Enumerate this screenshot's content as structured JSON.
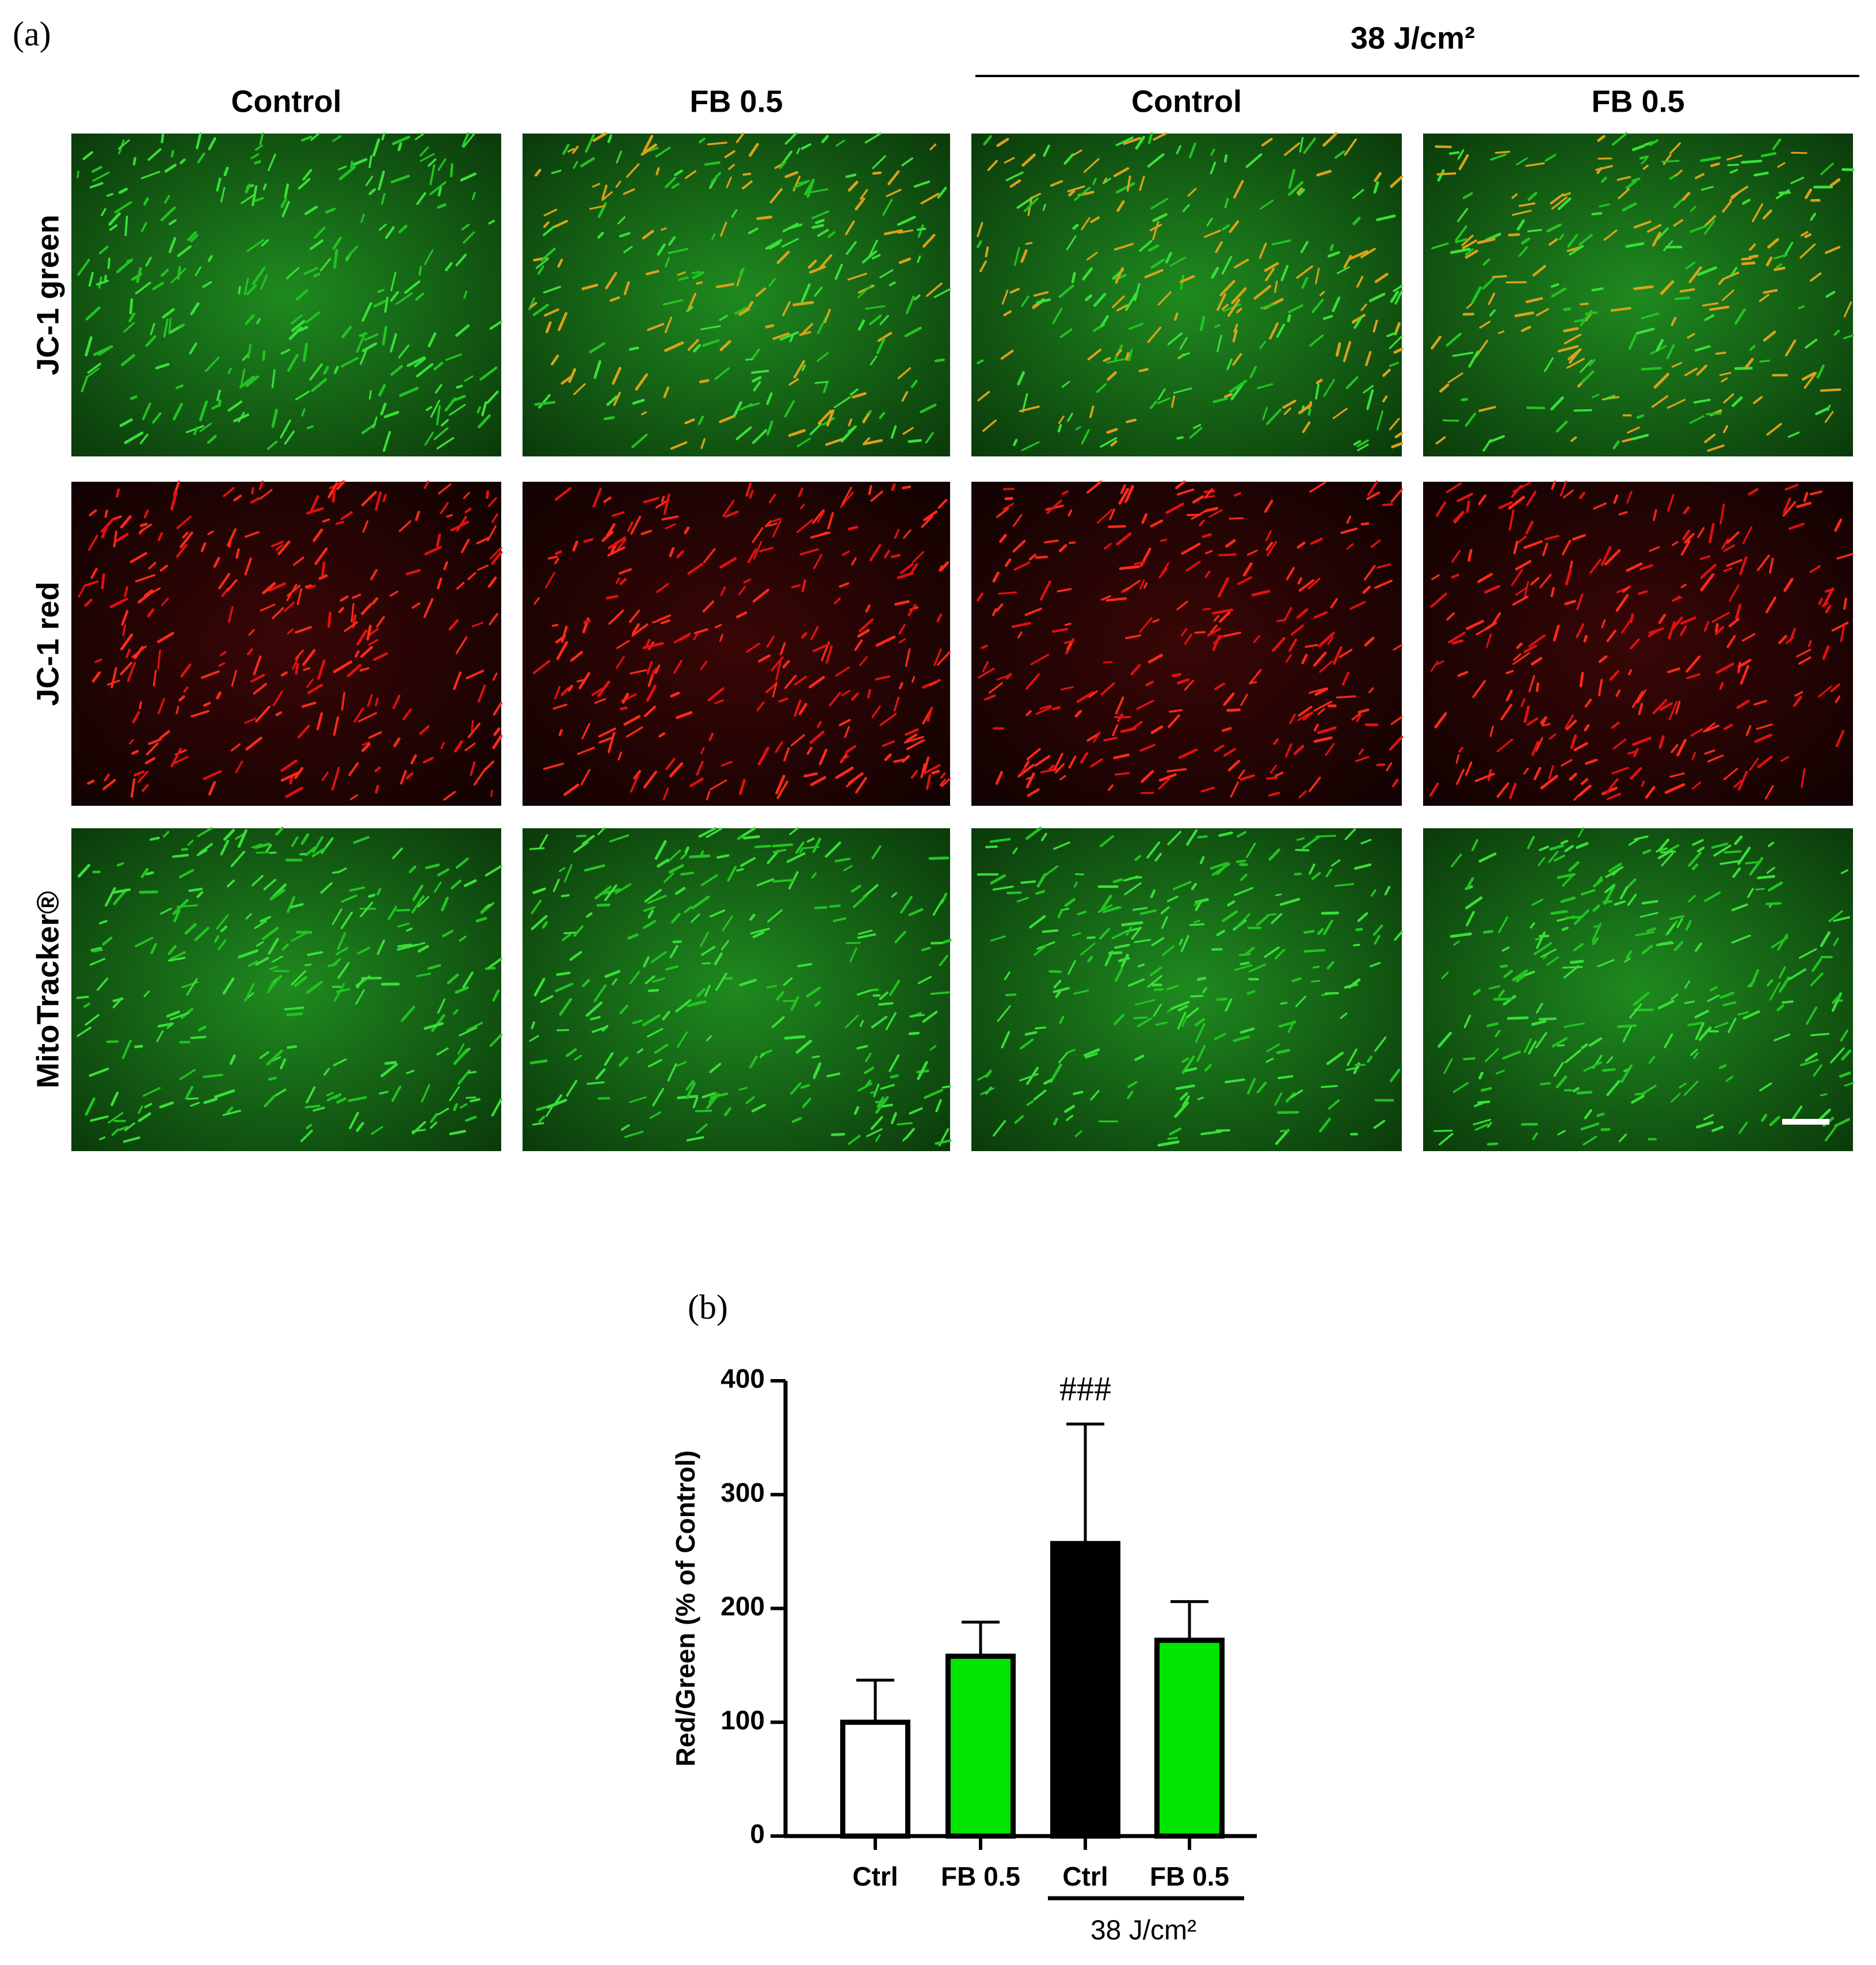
{
  "figure": {
    "panel_a_label": "(a)",
    "panel_b_label": "(b)",
    "group_header": "38 J/cm²",
    "columns": [
      "Control",
      "FB 0.5",
      "Control",
      "FB 0.5"
    ],
    "rows": [
      "JC-1 green",
      "JC-1 red",
      "MitoTracker®"
    ]
  },
  "chart_data": {
    "type": "bar",
    "ylabel": "Red/Green (% of Control)",
    "categories": [
      "Ctrl",
      "FB 0.5",
      "Ctrl",
      "FB 0.5"
    ],
    "values": [
      100,
      158,
      257,
      172
    ],
    "errors": [
      37,
      30,
      105,
      34
    ],
    "colors": [
      "#ffffff",
      "#00e600",
      "#000000",
      "#00e600"
    ],
    "annotations": [
      null,
      null,
      "###",
      null
    ],
    "group_label": "38 J/cm²",
    "ylim": [
      0,
      400
    ],
    "yticks": [
      0,
      100,
      200,
      300,
      400
    ]
  }
}
